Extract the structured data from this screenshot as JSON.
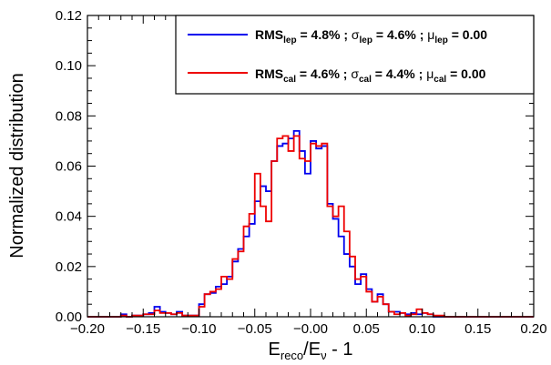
{
  "chart_data": {
    "type": "histogram",
    "xlabel": {
      "main": "E",
      "sub1": "reco",
      "mid": "/E",
      "sub2": "ν",
      "tail": " - 1"
    },
    "ylabel": "Normalized distribution",
    "xlim": [
      -0.2,
      0.2
    ],
    "ylim": [
      0,
      0.12
    ],
    "x_tick_labels": [
      "−0.20",
      "−0.15",
      "−0.10",
      "−0.05",
      "−0.00",
      "0.05",
      "0.10",
      "0.15",
      "0.20"
    ],
    "x_tick_values": [
      -0.2,
      -0.15,
      -0.1,
      -0.05,
      0.0,
      0.05,
      0.1,
      0.15,
      0.2
    ],
    "y_tick_labels": [
      "0.00",
      "0.02",
      "0.04",
      "0.06",
      "0.08",
      "0.10",
      "0.12"
    ],
    "y_tick_values": [
      0,
      0.02,
      0.04,
      0.06,
      0.08,
      0.1,
      0.12
    ],
    "bin_edges_start": -0.2,
    "bin_width": 0.005,
    "series": [
      {
        "color": "#0000ee",
        "legend": {
          "rms_sub": "lep",
          "rms_val": " = 4.8% ; ",
          "sigma_sub": "lep",
          "sigma_val": " = 4.6% ; ",
          "mu_sub": "lep",
          "mu_val": " = 0.00"
        },
        "values": [
          0.0,
          0.0,
          0.0,
          0.0,
          0.0,
          0.0,
          0.001,
          0.0,
          0.0005,
          0.0005,
          0.001,
          0.0015,
          0.004,
          0.002,
          0.0015,
          0.001,
          0.002,
          0.0005,
          0.0005,
          0.0005,
          0.005,
          0.009,
          0.0095,
          0.012,
          0.013,
          0.016,
          0.022,
          0.027,
          0.032,
          0.037,
          0.046,
          0.052,
          0.05,
          0.062,
          0.068,
          0.069,
          0.071,
          0.074,
          0.066,
          0.057,
          0.07,
          0.067,
          0.068,
          0.045,
          0.039,
          0.032,
          0.025,
          0.02,
          0.013,
          0.017,
          0.011,
          0.006,
          0.009,
          0.005,
          0.002,
          0.002,
          0.0015,
          0.001,
          0.0015,
          0.001,
          0.0015,
          0.001,
          0.0,
          0.0,
          0.0,
          0.0,
          0.0,
          0.0,
          0.0,
          0.0,
          0.0,
          0.0,
          0.0,
          0.0,
          0.0,
          0.0,
          0.0,
          0.0,
          0.0,
          0.0
        ]
      },
      {
        "color": "#ee0000",
        "legend": {
          "rms_sub": "cal",
          "rms_val": " = 4.6% ; ",
          "sigma_sub": "cal",
          "sigma_val": " = 4.4% ; ",
          "mu_sub": "cal",
          "mu_val": " = 0.00"
        },
        "values": [
          0.0,
          0.0,
          0.0,
          0.0,
          0.0,
          0.0,
          0.0005,
          0.0,
          0.0005,
          0.0005,
          0.001,
          0.001,
          0.0025,
          0.0015,
          0.0015,
          0.001,
          0.0015,
          0.0005,
          0.0005,
          0.0005,
          0.004,
          0.009,
          0.01,
          0.011,
          0.016,
          0.015,
          0.023,
          0.026,
          0.036,
          0.041,
          0.057,
          0.044,
          0.038,
          0.062,
          0.071,
          0.072,
          0.066,
          0.072,
          0.063,
          0.062,
          0.069,
          0.068,
          0.069,
          0.044,
          0.04,
          0.044,
          0.034,
          0.024,
          0.015,
          0.016,
          0.01,
          0.006,
          0.008,
          0.005,
          0.002,
          0.001,
          0.0015,
          0.0005,
          0.001,
          0.003,
          0.0015,
          0.001,
          0.0005,
          0.0005,
          0.0,
          0.0,
          0.0,
          0.0,
          0.0,
          0.0,
          0.0,
          0.0,
          0.0,
          0.0,
          0.0,
          0.0,
          0.0,
          0.0,
          0.0,
          0.0
        ]
      }
    ]
  }
}
